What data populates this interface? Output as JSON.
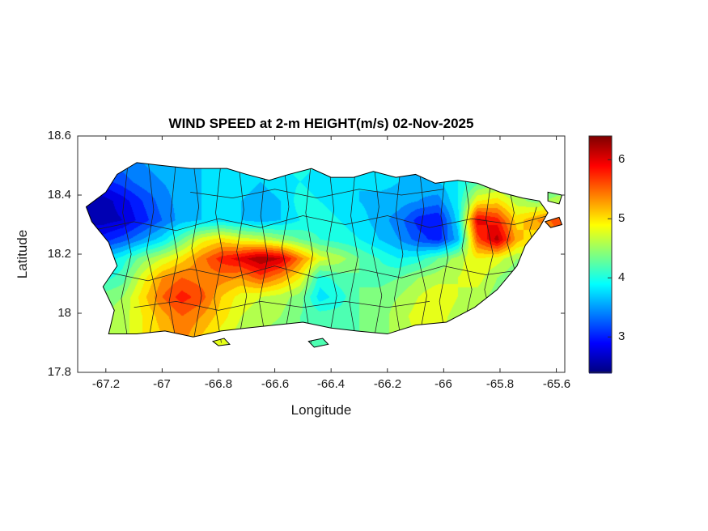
{
  "figure": {
    "title": "WIND SPEED at 2-m HEIGHT(m/s) 02-Nov-2025"
  },
  "chart_data": {
    "type": "heatmap",
    "title": "WIND SPEED at 2-m HEIGHT(m/s) 02-Nov-2025",
    "xlabel": "Longitude",
    "ylabel": "Latitude",
    "units": "m/s",
    "date": "02-Nov-2025",
    "xlim": [
      -67.3,
      -65.57
    ],
    "ylim": [
      17.8,
      18.6
    ],
    "xticks": [
      -67.2,
      -67,
      -66.8,
      -66.6,
      -66.4,
      -66.2,
      -66,
      -65.8,
      -65.6
    ],
    "xtick_labels": [
      "-67.2",
      "-67",
      "-66.8",
      "-66.6",
      "-66.4",
      "-66.2",
      "-66",
      "-65.8",
      "-65.6"
    ],
    "yticks": [
      18.6,
      18.4,
      18.2,
      18,
      17.8
    ],
    "ytick_labels": [
      "18.6",
      "18.4",
      "18.2",
      "18",
      "17.8"
    ],
    "grid_on": false,
    "legend": "none",
    "colorbar": {
      "position": "right",
      "colormap": "jet",
      "vmin": 2.4,
      "vmax": 6.4,
      "ticks": [
        3,
        4,
        5,
        6
      ],
      "tick_labels": [
        "3",
        "4",
        "5",
        "6"
      ]
    },
    "grid": {
      "lon": [
        -67.28,
        -67.21,
        -67.14,
        -67.07,
        -67.0,
        -66.93,
        -66.86,
        -66.79,
        -66.72,
        -66.65,
        -66.58,
        -66.51,
        -66.44,
        -66.37,
        -66.3,
        -66.23,
        -66.16,
        -66.09,
        -66.02,
        -65.95,
        -65.88,
        -65.81,
        -65.74,
        -65.67,
        -65.6
      ],
      "lat": [
        17.86,
        17.925,
        17.99,
        18.055,
        18.12,
        18.185,
        18.25,
        18.315,
        18.38,
        18.445,
        18.51,
        18.575
      ],
      "values": [
        [
          4.4,
          4.5,
          4.6,
          4.8,
          5.0,
          5.2,
          4.9,
          4.7,
          4.5,
          4.4,
          4.3,
          4.2,
          4.1,
          4.2,
          4.3,
          4.4,
          4.5,
          4.6,
          4.6,
          4.5,
          4.4,
          4.3,
          4.2,
          4.2,
          4.2
        ],
        [
          4.4,
          4.5,
          4.6,
          4.9,
          5.1,
          5.4,
          5.1,
          4.8,
          4.6,
          4.5,
          4.4,
          4.3,
          4.2,
          4.2,
          4.3,
          4.4,
          4.6,
          4.7,
          4.7,
          4.6,
          4.5,
          4.3,
          4.2,
          4.2,
          4.2
        ],
        [
          4.3,
          4.5,
          4.6,
          4.9,
          5.2,
          5.5,
          5.3,
          5.0,
          4.7,
          4.6,
          4.5,
          4.3,
          4.2,
          4.2,
          4.3,
          4.4,
          4.6,
          4.8,
          4.8,
          4.6,
          4.5,
          4.3,
          4.2,
          4.2,
          4.2
        ],
        [
          4.2,
          4.4,
          4.5,
          5.0,
          5.5,
          5.8,
          5.6,
          5.1,
          4.8,
          4.7,
          4.6,
          4.4,
          3.8,
          4.0,
          4.3,
          4.4,
          4.5,
          4.7,
          4.9,
          4.7,
          4.6,
          4.4,
          4.3,
          4.2,
          4.2
        ],
        [
          3.9,
          4.0,
          4.2,
          4.8,
          5.3,
          5.5,
          5.4,
          5.4,
          5.3,
          5.6,
          5.3,
          4.9,
          4.0,
          4.2,
          4.3,
          4.2,
          4.3,
          4.5,
          4.6,
          4.7,
          4.8,
          4.5,
          4.3,
          4.4,
          4.5
        ],
        [
          3.4,
          3.7,
          4.0,
          4.4,
          4.7,
          5.0,
          5.4,
          5.8,
          6.0,
          6.3,
          6.1,
          5.4,
          4.8,
          4.6,
          4.3,
          4.1,
          3.9,
          4.0,
          4.3,
          4.6,
          4.9,
          4.8,
          4.5,
          4.6,
          4.8
        ],
        [
          2.9,
          3.0,
          3.2,
          3.5,
          3.8,
          4.3,
          4.8,
          5.0,
          4.8,
          4.7,
          4.5,
          4.3,
          4.1,
          4.0,
          3.9,
          3.7,
          3.5,
          3.2,
          3.0,
          3.6,
          5.6,
          6.2,
          5.2,
          4.9,
          5.4
        ],
        [
          2.6,
          2.6,
          2.7,
          3.0,
          3.3,
          3.6,
          3.7,
          3.8,
          3.7,
          3.6,
          3.7,
          3.9,
          4.0,
          3.9,
          3.8,
          3.6,
          3.4,
          3.0,
          2.9,
          3.8,
          6.0,
          5.8,
          5.0,
          5.3,
          5.6
        ],
        [
          2.6,
          2.6,
          2.8,
          3.1,
          3.4,
          3.6,
          3.7,
          3.8,
          3.7,
          3.6,
          3.7,
          4.0,
          3.9,
          3.8,
          3.7,
          3.6,
          3.6,
          3.5,
          3.4,
          3.9,
          4.9,
          5.0,
          4.6,
          4.4,
          4.6
        ],
        [
          2.9,
          3.0,
          3.2,
          3.4,
          3.5,
          3.6,
          3.7,
          3.8,
          3.8,
          3.7,
          3.8,
          3.9,
          3.8,
          3.7,
          3.7,
          3.8,
          3.7,
          3.6,
          3.7,
          3.9,
          4.2,
          4.4,
          4.3,
          4.2,
          4.2
        ],
        [
          3.2,
          3.3,
          3.4,
          3.5,
          3.6,
          3.7,
          3.7,
          3.8,
          3.8,
          3.8,
          3.9,
          4.0,
          3.9,
          3.8,
          3.8,
          3.8,
          3.7,
          3.7,
          3.8,
          4.0,
          4.2,
          4.3,
          4.2,
          4.1,
          4.1
        ],
        [
          3.2,
          3.3,
          3.4,
          3.5,
          3.6,
          3.7,
          3.7,
          3.8,
          3.8,
          3.8,
          3.9,
          4.0,
          3.9,
          3.8,
          3.8,
          3.8,
          3.7,
          3.7,
          3.8,
          4.0,
          4.2,
          4.3,
          4.2,
          4.1,
          4.1
        ]
      ]
    },
    "coastline": {
      "main": [
        [
          -67.16,
          18.47
        ],
        [
          -67.09,
          18.51
        ],
        [
          -67.0,
          18.5
        ],
        [
          -66.9,
          18.49
        ],
        [
          -66.77,
          18.49
        ],
        [
          -66.7,
          18.47
        ],
        [
          -66.62,
          18.45
        ],
        [
          -66.55,
          18.47
        ],
        [
          -66.47,
          18.49
        ],
        [
          -66.4,
          18.46
        ],
        [
          -66.32,
          18.46
        ],
        [
          -66.25,
          18.48
        ],
        [
          -66.17,
          18.46
        ],
        [
          -66.1,
          18.47
        ],
        [
          -66.03,
          18.44
        ],
        [
          -65.95,
          18.45
        ],
        [
          -65.88,
          18.44
        ],
        [
          -65.8,
          18.41
        ],
        [
          -65.72,
          18.39
        ],
        [
          -65.66,
          18.38
        ],
        [
          -65.63,
          18.34
        ],
        [
          -65.66,
          18.29
        ],
        [
          -65.71,
          18.23
        ],
        [
          -65.74,
          18.16
        ],
        [
          -65.81,
          18.08
        ],
        [
          -65.89,
          18.02
        ],
        [
          -65.99,
          17.97
        ],
        [
          -66.1,
          17.96
        ],
        [
          -66.2,
          17.93
        ],
        [
          -66.31,
          17.94
        ],
        [
          -66.4,
          17.95
        ],
        [
          -66.5,
          17.97
        ],
        [
          -66.6,
          17.96
        ],
        [
          -66.7,
          17.95
        ],
        [
          -66.79,
          17.94
        ],
        [
          -66.89,
          17.92
        ],
        [
          -66.99,
          17.94
        ],
        [
          -67.09,
          17.93
        ],
        [
          -67.19,
          17.93
        ],
        [
          -67.17,
          18.01
        ],
        [
          -67.21,
          18.09
        ],
        [
          -67.16,
          18.16
        ],
        [
          -67.19,
          18.24
        ],
        [
          -67.25,
          18.31
        ],
        [
          -67.27,
          18.36
        ],
        [
          -67.2,
          18.41
        ]
      ],
      "islets": [
        [
          [
            -66.48,
            17.905
          ],
          [
            -66.43,
            17.915
          ],
          [
            -66.41,
            17.895
          ],
          [
            -66.46,
            17.885
          ]
        ],
        [
          [
            -66.82,
            17.905
          ],
          [
            -66.78,
            17.915
          ],
          [
            -66.76,
            17.895
          ],
          [
            -66.8,
            17.89
          ]
        ],
        [
          [
            -65.64,
            18.31
          ],
          [
            -65.59,
            18.325
          ],
          [
            -65.58,
            18.3
          ],
          [
            -65.62,
            18.29
          ]
        ],
        [
          [
            -65.63,
            18.41
          ],
          [
            -65.58,
            18.4
          ],
          [
            -65.59,
            18.37
          ],
          [
            -65.63,
            18.38
          ]
        ]
      ]
    },
    "boundaries": [
      [
        [
          -67.12,
          17.9
        ],
        [
          -67.145,
          18.05
        ],
        [
          -67.11,
          18.2
        ],
        [
          -67.14,
          18.34
        ],
        [
          -67.12,
          18.52
        ]
      ],
      [
        [
          -67.05,
          17.9
        ],
        [
          -67.02,
          18.06
        ],
        [
          -67.055,
          18.21
        ],
        [
          -67.03,
          18.35
        ],
        [
          -67.05,
          18.52
        ]
      ],
      [
        [
          -66.95,
          17.9
        ],
        [
          -66.975,
          18.04
        ],
        [
          -66.945,
          18.19
        ],
        [
          -66.97,
          18.33
        ],
        [
          -66.95,
          18.52
        ]
      ],
      [
        [
          -66.89,
          17.9
        ],
        [
          -66.86,
          18.06
        ],
        [
          -66.895,
          18.22
        ],
        [
          -66.87,
          18.36
        ],
        [
          -66.89,
          18.52
        ]
      ],
      [
        [
          -66.79,
          17.9
        ],
        [
          -66.815,
          18.05
        ],
        [
          -66.785,
          18.2
        ],
        [
          -66.81,
          18.34
        ],
        [
          -66.79,
          18.52
        ]
      ],
      [
        [
          -66.73,
          17.9
        ],
        [
          -66.7,
          18.06
        ],
        [
          -66.735,
          18.21
        ],
        [
          -66.71,
          18.35
        ],
        [
          -66.73,
          18.52
        ]
      ],
      [
        [
          -66.63,
          17.9
        ],
        [
          -66.655,
          18.04
        ],
        [
          -66.625,
          18.19
        ],
        [
          -66.65,
          18.33
        ],
        [
          -66.63,
          18.52
        ]
      ],
      [
        [
          -66.57,
          17.9
        ],
        [
          -66.54,
          18.06
        ],
        [
          -66.575,
          18.22
        ],
        [
          -66.55,
          18.36
        ],
        [
          -66.57,
          18.52
        ]
      ],
      [
        [
          -66.47,
          17.9
        ],
        [
          -66.495,
          18.05
        ],
        [
          -66.465,
          18.2
        ],
        [
          -66.49,
          18.34
        ],
        [
          -66.47,
          18.52
        ]
      ],
      [
        [
          -66.41,
          17.9
        ],
        [
          -66.38,
          18.06
        ],
        [
          -66.415,
          18.21
        ],
        [
          -66.39,
          18.35
        ],
        [
          -66.41,
          18.52
        ]
      ],
      [
        [
          -66.31,
          17.9
        ],
        [
          -66.335,
          18.04
        ],
        [
          -66.305,
          18.19
        ],
        [
          -66.33,
          18.33
        ],
        [
          -66.31,
          18.52
        ]
      ],
      [
        [
          -66.25,
          17.9
        ],
        [
          -66.22,
          18.06
        ],
        [
          -66.255,
          18.22
        ],
        [
          -66.23,
          18.36
        ],
        [
          -66.25,
          18.52
        ]
      ],
      [
        [
          -66.15,
          17.9
        ],
        [
          -66.175,
          18.05
        ],
        [
          -66.145,
          18.2
        ],
        [
          -66.17,
          18.34
        ],
        [
          -66.15,
          18.52
        ]
      ],
      [
        [
          -66.09,
          17.9
        ],
        [
          -66.06,
          18.06
        ],
        [
          -66.095,
          18.21
        ],
        [
          -66.07,
          18.35
        ],
        [
          -66.09,
          18.52
        ]
      ],
      [
        [
          -65.99,
          17.9
        ],
        [
          -66.015,
          18.04
        ],
        [
          -65.985,
          18.19
        ],
        [
          -66.01,
          18.33
        ],
        [
          -65.99,
          18.52
        ]
      ],
      [
        [
          -65.93,
          17.95
        ],
        [
          -65.9,
          18.08
        ],
        [
          -65.935,
          18.22
        ],
        [
          -65.91,
          18.36
        ],
        [
          -65.93,
          18.5
        ]
      ],
      [
        [
          -65.83,
          17.98
        ],
        [
          -65.855,
          18.08
        ],
        [
          -65.825,
          18.2
        ],
        [
          -65.85,
          18.32
        ],
        [
          -65.83,
          18.46
        ]
      ],
      [
        [
          -65.77,
          18.02
        ],
        [
          -65.74,
          18.12
        ],
        [
          -65.775,
          18.24
        ],
        [
          -65.75,
          18.34
        ],
        [
          -65.77,
          18.44
        ]
      ],
      [
        [
          -65.67,
          18.2
        ],
        [
          -65.695,
          18.28
        ],
        [
          -65.67,
          18.36
        ]
      ],
      [
        [
          -67.2,
          18.14
        ],
        [
          -67.05,
          18.11
        ],
        [
          -66.9,
          18.15
        ],
        [
          -66.75,
          18.12
        ],
        [
          -66.6,
          18.16
        ],
        [
          -66.45,
          18.12
        ],
        [
          -66.3,
          18.15
        ],
        [
          -66.15,
          18.12
        ],
        [
          -66.0,
          18.16
        ],
        [
          -65.85,
          18.13
        ],
        [
          -65.7,
          18.15
        ]
      ],
      [
        [
          -67.25,
          18.28
        ],
        [
          -67.1,
          18.31
        ],
        [
          -66.95,
          18.28
        ],
        [
          -66.8,
          18.32
        ],
        [
          -66.65,
          18.29
        ],
        [
          -66.5,
          18.33
        ],
        [
          -66.35,
          18.3
        ],
        [
          -66.2,
          18.33
        ],
        [
          -66.05,
          18.29
        ],
        [
          -65.9,
          18.32
        ],
        [
          -65.75,
          18.3
        ],
        [
          -65.63,
          18.33
        ]
      ],
      [
        [
          -66.9,
          18.41
        ],
        [
          -66.75,
          18.39
        ],
        [
          -66.6,
          18.42
        ],
        [
          -66.45,
          18.39
        ],
        [
          -66.3,
          18.42
        ],
        [
          -66.15,
          18.4
        ],
        [
          -66.0,
          18.42
        ]
      ],
      [
        [
          -67.1,
          18.02
        ],
        [
          -66.95,
          18.04
        ],
        [
          -66.8,
          18.01
        ],
        [
          -66.65,
          18.04
        ],
        [
          -66.5,
          18.02
        ],
        [
          -66.35,
          18.04
        ],
        [
          -66.2,
          18.02
        ],
        [
          -66.05,
          18.04
        ]
      ]
    ]
  }
}
